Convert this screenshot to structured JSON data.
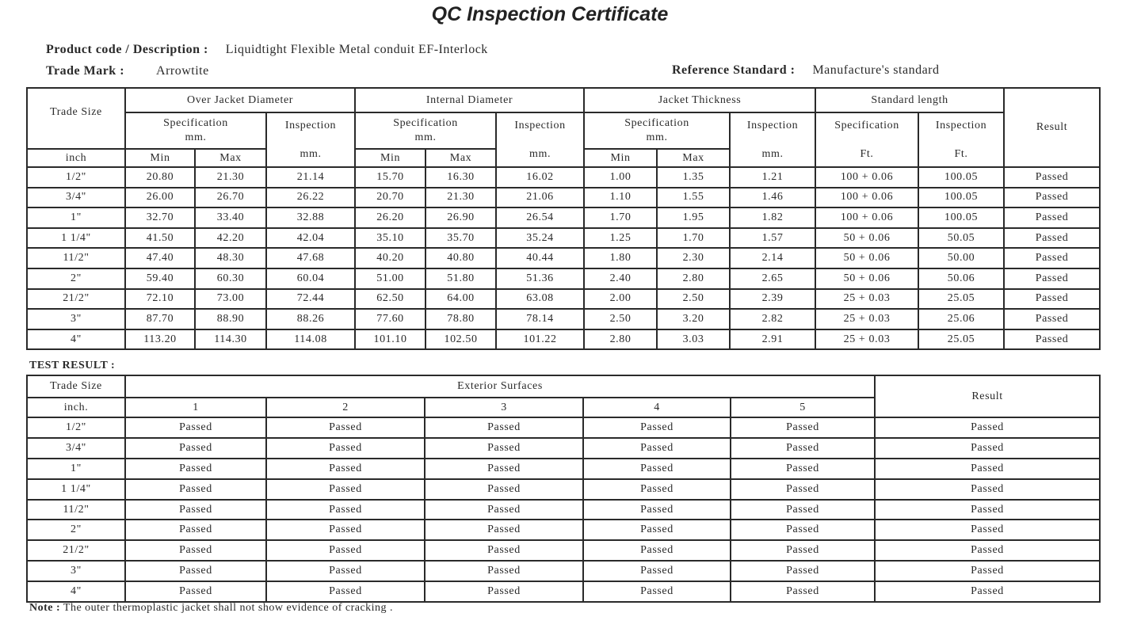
{
  "title": "QC Inspection Certificate",
  "product_label": "Product code /  Description  :",
  "product_value": "Liquidtight  Flexible  Metal conduit EF-Interlock",
  "trade_mark_label": "Trade Mark  :",
  "trade_mark_value": "Arrowtite",
  "reference_label": "Reference Standard  :",
  "reference_value": "Manufacture's standard",
  "table1": {
    "headers": {
      "trade_size": "Trade Size",
      "inch": "inch",
      "over_jacket": "Over Jacket  Diameter",
      "internal": "Internal Diameter",
      "jacket_thickness": "Jacket Thickness",
      "standard_length": "Standard length",
      "result": "Result",
      "specification": "Specification",
      "inspection": "Inspection",
      "mm": "mm.",
      "ft": "Ft.",
      "min": "Min",
      "max": "Max"
    },
    "rows": [
      [
        "1/2\"",
        "20.80",
        "21.30",
        "21.14",
        "15.70",
        "16.30",
        "16.02",
        "1.00",
        "1.35",
        "1.21",
        "100 + 0.06",
        "100.05",
        "Passed"
      ],
      [
        "3/4\"",
        "26.00",
        "26.70",
        "26.22",
        "20.70",
        "21.30",
        "21.06",
        "1.10",
        "1.55",
        "1.46",
        "100 + 0.06",
        "100.05",
        "Passed"
      ],
      [
        "1\"",
        "32.70",
        "33.40",
        "32.88",
        "26.20",
        "26.90",
        "26.54",
        "1.70",
        "1.95",
        "1.82",
        "100 + 0.06",
        "100.05",
        "Passed"
      ],
      [
        "1 1/4\"",
        "41.50",
        "42.20",
        "42.04",
        "35.10",
        "35.70",
        "35.24",
        "1.25",
        "1.70",
        "1.57",
        "50 + 0.06",
        "50.05",
        "Passed"
      ],
      [
        "11/2\"",
        "47.40",
        "48.30",
        "47.68",
        "40.20",
        "40.80",
        "40.44",
        "1.80",
        "2.30",
        "2.14",
        "50 + 0.06",
        "50.00",
        "Passed"
      ],
      [
        "2\"",
        "59.40",
        "60.30",
        "60.04",
        "51.00",
        "51.80",
        "51.36",
        "2.40",
        "2.80",
        "2.65",
        "50 + 0.06",
        "50.06",
        "Passed"
      ],
      [
        "21/2\"",
        "72.10",
        "73.00",
        "72.44",
        "62.50",
        "64.00",
        "63.08",
        "2.00",
        "2.50",
        "2.39",
        "25 + 0.03",
        "25.05",
        "Passed"
      ],
      [
        "3\"",
        "87.70",
        "88.90",
        "88.26",
        "77.60",
        "78.80",
        "78.14",
        "2.50",
        "3.20",
        "2.82",
        "25 + 0.03",
        "25.06",
        "Passed"
      ],
      [
        "4\"",
        "113.20",
        "114.30",
        "114.08",
        "101.10",
        "102.50",
        "101.22",
        "2.80",
        "3.03",
        "2.91",
        "25 + 0.03",
        "25.05",
        "Passed"
      ]
    ]
  },
  "test_result_label": "TEST  RESULT  :",
  "table2": {
    "headers": {
      "trade_size": "Trade Size",
      "inch": "inch.",
      "exterior": "Exterior Surfaces",
      "result": "Result",
      "columns": [
        "1",
        "2",
        "3",
        "4",
        "5"
      ]
    },
    "rows": [
      [
        "1/2\"",
        "Passed",
        "Passed",
        "Passed",
        "Passed",
        "Passed",
        "Passed"
      ],
      [
        "3/4\"",
        "Passed",
        "Passed",
        "Passed",
        "Passed",
        "Passed",
        "Passed"
      ],
      [
        "1\"",
        "Passed",
        "Passed",
        "Passed",
        "Passed",
        "Passed",
        "Passed"
      ],
      [
        "1 1/4\"",
        "Passed",
        "Passed",
        "Passed",
        "Passed",
        "Passed",
        "Passed"
      ],
      [
        "11/2\"",
        "Passed",
        "Passed",
        "Passed",
        "Passed",
        "Passed",
        "Passed"
      ],
      [
        "2\"",
        "Passed",
        "Passed",
        "Passed",
        "Passed",
        "Passed",
        "Passed"
      ],
      [
        "21/2\"",
        "Passed",
        "Passed",
        "Passed",
        "Passed",
        "Passed",
        "Passed"
      ],
      [
        "3\"",
        "Passed",
        "Passed",
        "Passed",
        "Passed",
        "Passed",
        "Passed"
      ],
      [
        "4\"",
        "Passed",
        "Passed",
        "Passed",
        "Passed",
        "Passed",
        "Passed"
      ]
    ]
  },
  "note_label": "Note :",
  "note_text": "The outer thermoplastic jacket shall not show evidence  of cracking ."
}
